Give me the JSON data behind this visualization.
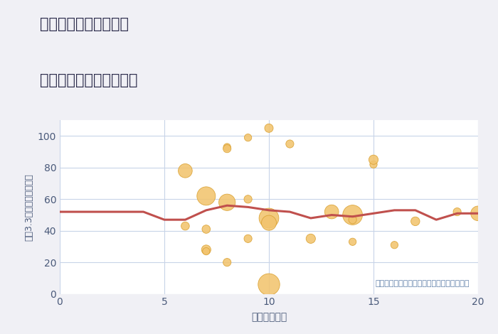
{
  "title_line1": "兵庫県西宮市青葉台の",
  "title_line2": "駅距離別中古戸建て価格",
  "xlabel": "駅距離（分）",
  "ylabel": "坪（3.3㎡）単価（万円）",
  "annotation": "円の大きさは、取引のあった物件面積を示す",
  "xlim": [
    0,
    20
  ],
  "ylim": [
    0,
    110
  ],
  "xticks": [
    0,
    5,
    10,
    15,
    20
  ],
  "yticks": [
    0,
    20,
    40,
    60,
    80,
    100
  ],
  "background_color": "#f0f0f5",
  "plot_bg_color": "#ffffff",
  "grid_color": "#c8d4e8",
  "bubble_color": "#f2c46e",
  "bubble_edge_color": "#d9a030",
  "line_color": "#c0504d",
  "title_color": "#2a2a4a",
  "label_color": "#4a5a7a",
  "tick_color": "#4a5a7a",
  "annotation_color": "#6080aa",
  "scatter_x": [
    6,
    6,
    7,
    7,
    7,
    7,
    8,
    8,
    8,
    8,
    9,
    9,
    9,
    10,
    10,
    10,
    10,
    11,
    12,
    13,
    14,
    14,
    14,
    15,
    15,
    16,
    17,
    19,
    20
  ],
  "scatter_y": [
    78,
    43,
    62,
    41,
    28,
    27,
    93,
    92,
    58,
    20,
    99,
    60,
    35,
    105,
    48,
    45,
    6,
    95,
    35,
    52,
    50,
    47,
    33,
    82,
    85,
    31,
    46,
    52,
    51
  ],
  "scatter_size": [
    200,
    70,
    350,
    70,
    90,
    55,
    55,
    65,
    280,
    65,
    55,
    65,
    65,
    75,
    400,
    230,
    480,
    65,
    90,
    200,
    400,
    65,
    55,
    55,
    90,
    55,
    80,
    65,
    220
  ],
  "line_x": [
    0,
    1,
    2,
    3,
    4,
    5,
    6,
    7,
    8,
    9,
    10,
    11,
    12,
    13,
    14,
    15,
    16,
    17,
    18,
    19,
    20
  ],
  "line_y": [
    52,
    52,
    52,
    52,
    52,
    47,
    47,
    53,
    56,
    55,
    53,
    52,
    48,
    50,
    49,
    51,
    53,
    53,
    47,
    51,
    51
  ]
}
